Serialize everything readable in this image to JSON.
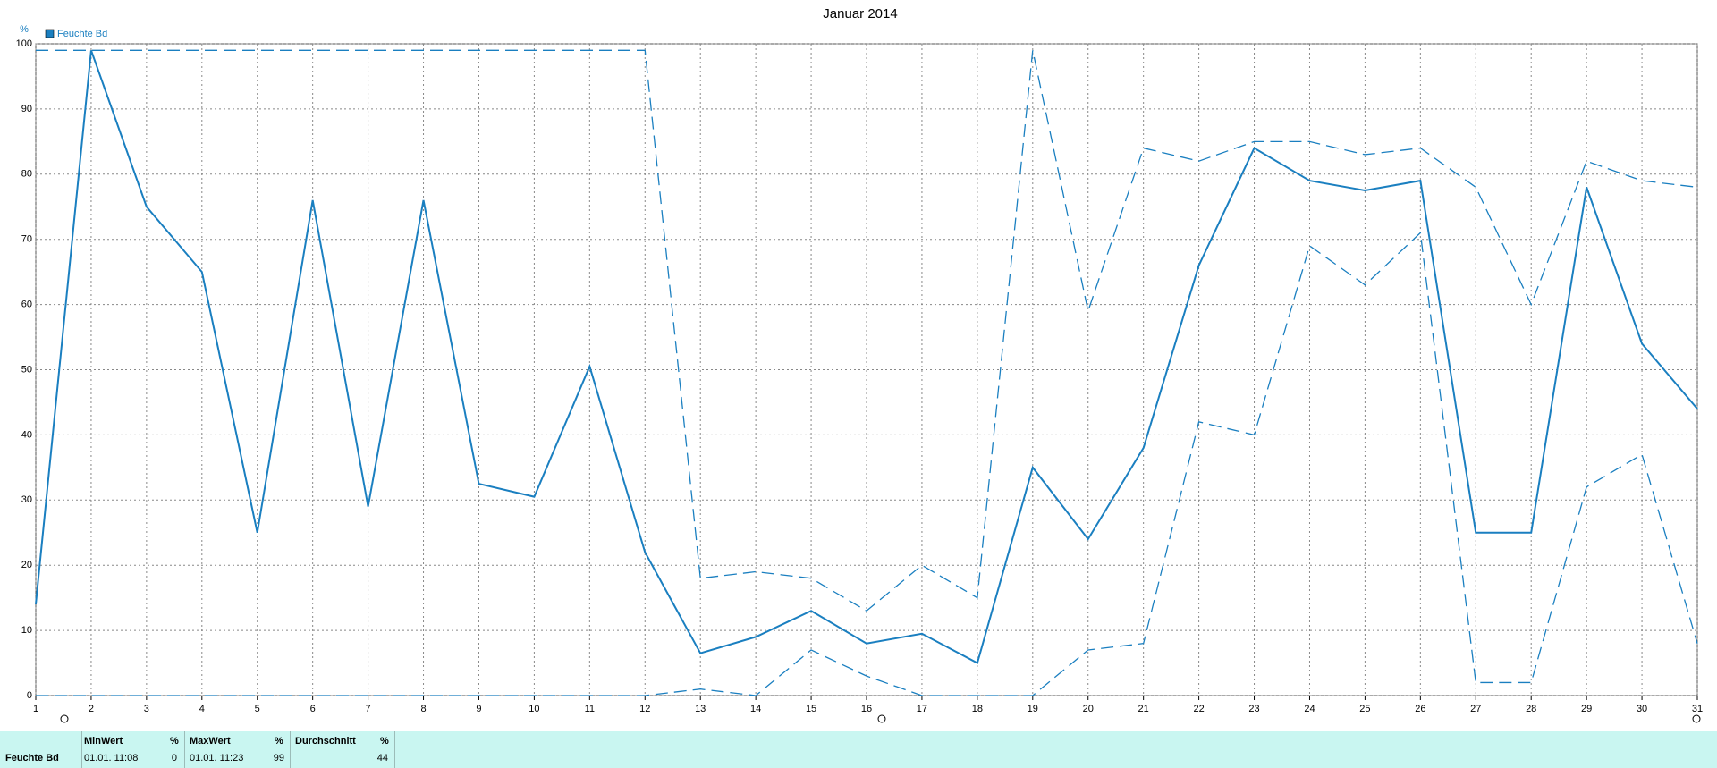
{
  "chart_data": {
    "type": "line",
    "title": "Januar 2014",
    "y_label": "%",
    "x": [
      1,
      2,
      3,
      4,
      5,
      6,
      7,
      8,
      9,
      10,
      11,
      12,
      13,
      14,
      15,
      16,
      17,
      18,
      19,
      20,
      21,
      22,
      23,
      24,
      25,
      26,
      27,
      28,
      29,
      30,
      31
    ],
    "xlim": [
      1,
      31
    ],
    "xticks": [
      1,
      2,
      3,
      4,
      5,
      6,
      7,
      8,
      9,
      10,
      11,
      12,
      13,
      14,
      15,
      16,
      17,
      18,
      19,
      20,
      21,
      22,
      23,
      24,
      25,
      26,
      27,
      28,
      29,
      30,
      31
    ],
    "ylim": [
      0,
      100
    ],
    "yticks": [
      0,
      10,
      20,
      30,
      40,
      50,
      60,
      70,
      80,
      90,
      100
    ],
    "grid": true,
    "series": [
      {
        "name": "Feuchte Bd",
        "color": "#1a7fc0",
        "style": "solid",
        "values": [
          14,
          99,
          75,
          65,
          25,
          76,
          29,
          76,
          32.5,
          30.5,
          50.5,
          22,
          6.5,
          9,
          13,
          8,
          9.5,
          5,
          35,
          24,
          38,
          66,
          84,
          79,
          77.5,
          79,
          25,
          25,
          78,
          54,
          44
        ]
      },
      {
        "color": "#1a7fc0",
        "style": "dashed",
        "values": [
          99,
          99,
          99,
          99,
          99,
          99,
          99,
          99,
          99,
          99,
          99,
          99,
          18,
          19,
          18,
          13,
          20,
          15,
          99,
          59,
          84,
          82,
          85,
          85,
          83,
          84,
          78,
          60,
          82,
          79,
          78
        ]
      },
      {
        "color": "#1a7fc0",
        "style": "dashed",
        "values": [
          0,
          0,
          0,
          0,
          0,
          0,
          0,
          0,
          0,
          0,
          0,
          0,
          1,
          0,
          7,
          3,
          0,
          0,
          0,
          7,
          8,
          42,
          40,
          69,
          63,
          71,
          2,
          2,
          32,
          37,
          8
        ]
      }
    ]
  },
  "table": {
    "header": [
      "MinWert",
      "%",
      "MaxWert",
      "%",
      "Durchschnitt",
      "%"
    ],
    "rows": [
      [
        "Feuchte Bd",
        "01.01. 11:08",
        0,
        "01.01. 11:23",
        99,
        44
      ]
    ]
  }
}
